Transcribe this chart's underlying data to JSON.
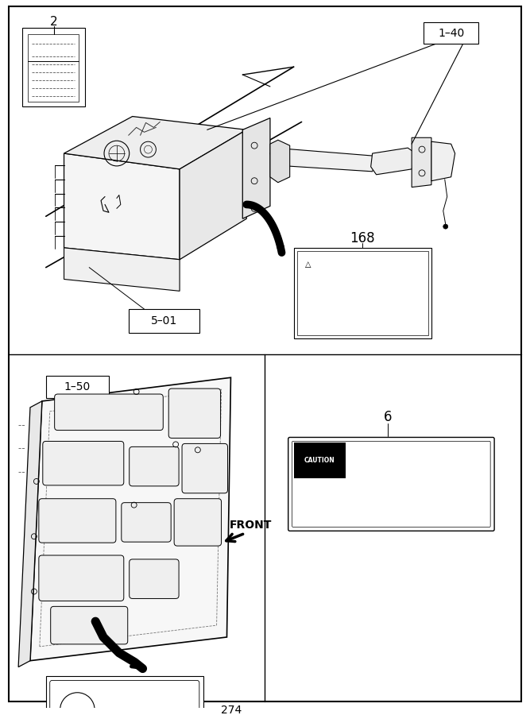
{
  "bg_color": "#ffffff",
  "lc": "#000000",
  "figsize": [
    6.67,
    9.0
  ],
  "dpi": 100
}
